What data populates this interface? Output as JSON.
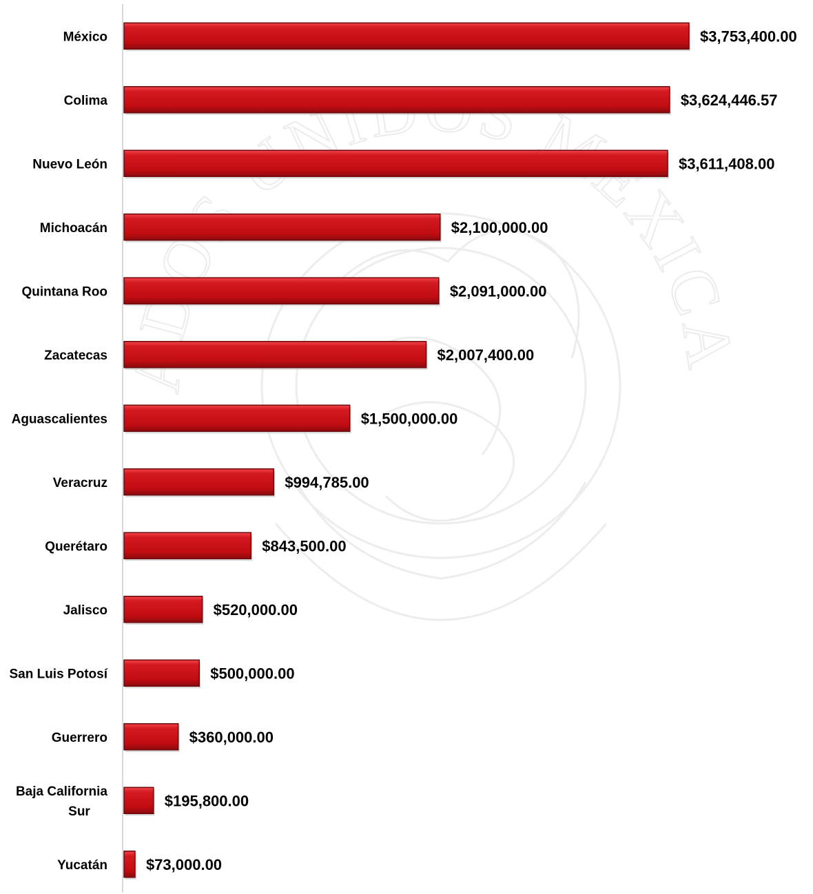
{
  "chart_data": {
    "type": "bar",
    "orientation": "horizontal",
    "title": "",
    "xlabel": "",
    "ylabel": "",
    "categories": [
      [
        "México"
      ],
      [
        "Colima"
      ],
      [
        "Nuevo León"
      ],
      [
        "Michoacán"
      ],
      [
        "Quintana Roo"
      ],
      [
        "Zacatecas"
      ],
      [
        "Aguascalientes"
      ],
      [
        "Veracruz"
      ],
      [
        "Querétaro"
      ],
      [
        "Jalisco"
      ],
      [
        "San Luis Potosí"
      ],
      [
        "Guerrero"
      ],
      [
        "Baja California",
        "Sur"
      ],
      [
        "Yucatán"
      ]
    ],
    "values": [
      3753400.0,
      3624446.57,
      3611408.0,
      2100000.0,
      2091000.0,
      2007400.0,
      1500000.0,
      994785.0,
      843500.0,
      520000.0,
      500000.0,
      360000.0,
      195800.0,
      73000.0
    ],
    "value_labels": [
      "$3,753,400.00",
      "$3,624,446.57",
      "$3,611,408.00",
      "$2,100,000.00",
      "$2,091,000.00",
      "$2,007,400.00",
      "$1,500,000.00",
      "$994,785.00",
      "$843,500.00",
      "$520,000.00",
      "$500,000.00",
      "$360,000.00",
      "$195,800.00",
      "$73,000.00"
    ],
    "xlim": [
      0,
      3753400
    ],
    "grid": false,
    "legend": "none",
    "bar_color": "#c81016",
    "bar_edge_color": "#6e0a0c",
    "axis_color": "#d9d9d9",
    "watermark": {
      "emblem": "mexican-coat-of-arms-icon",
      "text": "ESTADOS UNIDOS MEXICANOS",
      "color": "#ececec"
    }
  }
}
